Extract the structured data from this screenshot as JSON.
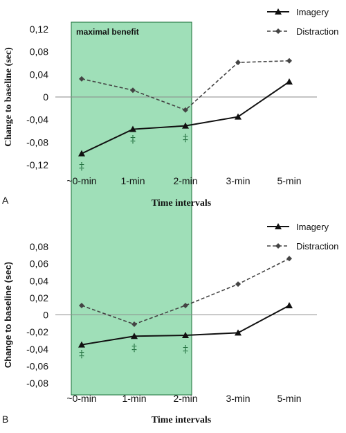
{
  "colors": {
    "band_fill": "#9fdfb8",
    "band_stroke": "#1b6f38",
    "imagery": "#111111",
    "distraction": "#444444",
    "dagger": "#1d6b3a"
  },
  "band_label": "maximal benefit",
  "chart_data": [
    {
      "panel": "A",
      "type": "line",
      "categories": [
        "~0-min",
        "1-min",
        "2-min",
        "3-min",
        "5-min"
      ],
      "xlabel": "Time intervals",
      "ylabel": "Change to baseline (sec)",
      "ylim": [
        -0.12,
        0.12
      ],
      "yticks": [
        -0.12,
        -0.08,
        -0.04,
        0,
        0.04,
        0.08,
        0.12
      ],
      "ytick_labels": [
        "-0,12",
        "-0,08",
        "-0,04",
        "0",
        "0,04",
        "0,08",
        "0,12"
      ],
      "legend_position": "top-right",
      "series": [
        {
          "name": "Imagery",
          "style": "solid",
          "marker": "triangle",
          "values": [
            -0.1,
            -0.057,
            -0.051,
            -0.035,
            0.027
          ]
        },
        {
          "name": "Distraction",
          "style": "dashed",
          "marker": "diamond",
          "values": [
            0.032,
            0.012,
            -0.023,
            0.061,
            0.064
          ]
        }
      ],
      "annotations": [
        {
          "category_index": 0,
          "text": "‡"
        },
        {
          "category_index": 1,
          "text": "‡"
        },
        {
          "category_index": 2,
          "text": "‡"
        }
      ]
    },
    {
      "panel": "B",
      "type": "line",
      "categories": [
        "~0-min",
        "1-min",
        "2-min",
        "3-min",
        "5-min"
      ],
      "xlabel": "Time intervals",
      "ylabel": "Change  to baseline (sec)",
      "ylim": [
        -0.08,
        0.08
      ],
      "yticks": [
        -0.08,
        -0.06,
        -0.04,
        -0.02,
        0,
        0.02,
        0.04,
        0.06,
        0.08
      ],
      "ytick_labels": [
        "-0,08",
        "-0,06",
        "-0,04",
        "-0,02",
        "0",
        "0,02",
        "0,04",
        "0,06",
        "0,08"
      ],
      "legend_position": "top-right",
      "series": [
        {
          "name": "Imagery",
          "style": "solid",
          "marker": "triangle",
          "values": [
            -0.035,
            -0.025,
            -0.024,
            -0.021,
            0.011
          ]
        },
        {
          "name": "Distraction",
          "style": "dashed",
          "marker": "diamond",
          "values": [
            0.011,
            -0.011,
            0.011,
            0.036,
            0.066
          ]
        }
      ],
      "annotations": [
        {
          "category_index": 0,
          "text": "‡"
        },
        {
          "category_index": 1,
          "text": "‡"
        },
        {
          "category_index": 2,
          "text": "‡"
        }
      ]
    }
  ]
}
